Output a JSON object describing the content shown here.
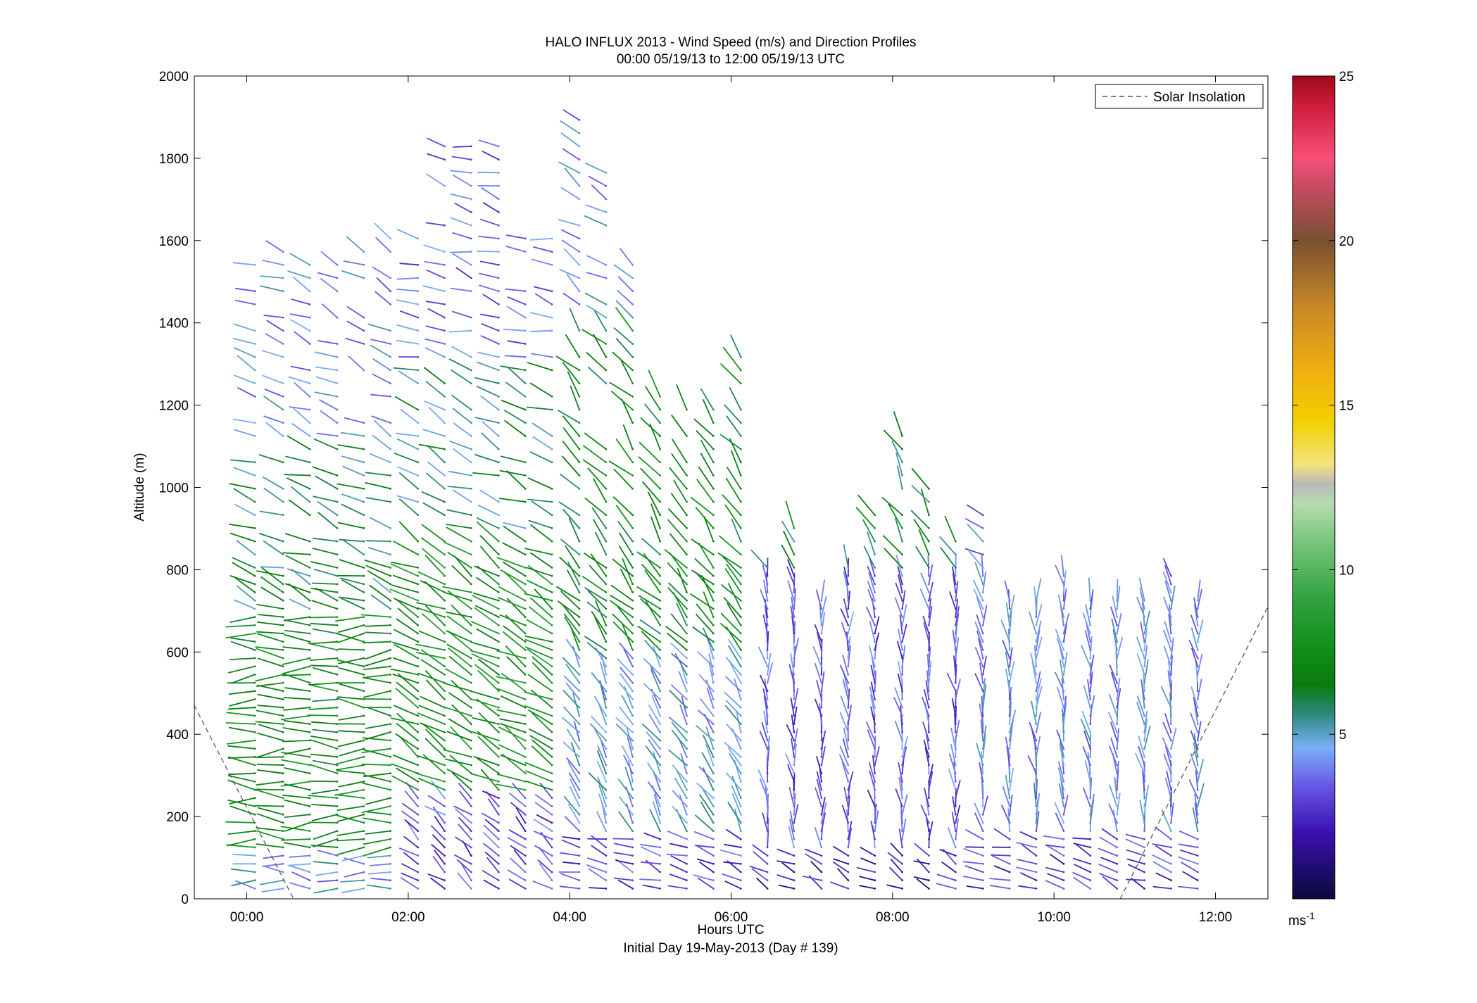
{
  "chart_data": {
    "type": "wind-barb-profile",
    "title": "HALO INFLUX 2013 - Wind Speed (m/s) and Direction Profiles",
    "subtitle": "00:00 05/19/13 to 12:00 05/19/13  UTC",
    "xlabel": "Hours UTC",
    "xlabel2": "Initial Day 19-May-2013 (Day # 139)",
    "ylabel": "Altitude (m)",
    "xlim_hours": [
      -0.65,
      12.65
    ],
    "ylim": [
      0,
      2000
    ],
    "x_ticks": [
      {
        "hour": 0,
        "label": "00:00"
      },
      {
        "hour": 2,
        "label": "02:00"
      },
      {
        "hour": 4,
        "label": "04:00"
      },
      {
        "hour": 6,
        "label": "06:00"
      },
      {
        "hour": 8,
        "label": "08:00"
      },
      {
        "hour": 10,
        "label": "10:00"
      },
      {
        "hour": 12,
        "label": "12:00"
      }
    ],
    "y_ticks": [
      {
        "value": 0,
        "label": "0"
      },
      {
        "value": 200,
        "label": "200"
      },
      {
        "value": 400,
        "label": "400"
      },
      {
        "value": 600,
        "label": "600"
      },
      {
        "value": 800,
        "label": "800"
      },
      {
        "value": 1000,
        "label": "1000"
      },
      {
        "value": 1200,
        "label": "1200"
      },
      {
        "value": 1400,
        "label": "1400"
      },
      {
        "value": 1600,
        "label": "1600"
      },
      {
        "value": 1800,
        "label": "1800"
      },
      {
        "value": 2000,
        "label": "2000"
      }
    ],
    "colorbar": {
      "range": [
        0,
        25
      ],
      "ticks": [
        {
          "value": 5,
          "label": "5"
        },
        {
          "value": 10,
          "label": "10"
        },
        {
          "value": 15,
          "label": "15"
        },
        {
          "value": 20,
          "label": "20"
        },
        {
          "value": 25,
          "label": "25"
        }
      ],
      "unit_label": "ms",
      "unit_exp": "-1",
      "stops": [
        {
          "v": 0,
          "c": "#0a0a3a"
        },
        {
          "v": 2,
          "c": "#3a10b0"
        },
        {
          "v": 3.5,
          "c": "#6a5ae8"
        },
        {
          "v": 4.6,
          "c": "#7ab0f8"
        },
        {
          "v": 5.6,
          "c": "#2e8a7e"
        },
        {
          "v": 6.5,
          "c": "#0a7a10"
        },
        {
          "v": 7.5,
          "c": "#0e8e16"
        },
        {
          "v": 9,
          "c": "#2ea03e"
        },
        {
          "v": 10.5,
          "c": "#6abe6e"
        },
        {
          "v": 12,
          "c": "#b4dcae"
        },
        {
          "v": 12.6,
          "c": "#b8b8b8"
        },
        {
          "v": 13.2,
          "c": "#f2e480"
        },
        {
          "v": 14.5,
          "c": "#f2d000"
        },
        {
          "v": 16,
          "c": "#f0b010"
        },
        {
          "v": 18,
          "c": "#c88828"
        },
        {
          "v": 20,
          "c": "#785030"
        },
        {
          "v": 21.5,
          "c": "#c04a60"
        },
        {
          "v": 22.5,
          "c": "#f85078"
        },
        {
          "v": 24,
          "c": "#d02040"
        },
        {
          "v": 25,
          "c": "#a00818"
        }
      ]
    },
    "legend": {
      "label": "Solar Insolation",
      "position": "top-right"
    },
    "solar_insolation": [
      {
        "hour": -0.65,
        "alt": 470
      },
      {
        "hour": 0.58,
        "alt": 0
      },
      {
        "hour": 10.82,
        "alt": 0
      },
      {
        "hour": 12.65,
        "alt": 710
      }
    ],
    "profiles": [
      {
        "hour": 0.1,
        "top": 1580,
        "start": 25
      },
      {
        "hour": 0.45,
        "top": 1620,
        "start": 25
      },
      {
        "hour": 0.78,
        "top": 1570,
        "start": 25
      },
      {
        "hour": 1.12,
        "top": 1570,
        "start": 25
      },
      {
        "hour": 1.45,
        "top": 1580,
        "start": 25
      },
      {
        "hour": 1.78,
        "top": 1630,
        "start": 25
      },
      {
        "hour": 2.12,
        "top": 1620,
        "start": 25
      },
      {
        "hour": 2.45,
        "top": 1860,
        "start": 25
      },
      {
        "hour": 2.78,
        "top": 1860,
        "start": 25
      },
      {
        "hour": 3.12,
        "top": 1860,
        "start": 25
      },
      {
        "hour": 3.45,
        "top": 1620,
        "start": 25
      },
      {
        "hour": 3.78,
        "top": 1620,
        "start": 25
      },
      {
        "hour": 4.12,
        "top": 1920,
        "start": 25
      },
      {
        "hour": 4.45,
        "top": 1780,
        "start": 25
      },
      {
        "hour": 4.78,
        "top": 1560,
        "start": 25
      },
      {
        "hour": 5.12,
        "top": 1240,
        "start": 25
      },
      {
        "hour": 5.45,
        "top": 1200,
        "start": 25
      },
      {
        "hour": 5.78,
        "top": 1200,
        "start": 25
      },
      {
        "hour": 6.12,
        "top": 1320,
        "start": 25
      },
      {
        "hour": 6.45,
        "top": 830,
        "start": 25
      },
      {
        "hour": 6.78,
        "top": 930,
        "start": 25
      },
      {
        "hour": 7.12,
        "top": 730,
        "start": 25
      },
      {
        "hour": 7.45,
        "top": 820,
        "start": 25
      },
      {
        "hour": 7.78,
        "top": 960,
        "start": 25
      },
      {
        "hour": 8.12,
        "top": 1130,
        "start": 25
      },
      {
        "hour": 8.45,
        "top": 1010,
        "start": 25
      },
      {
        "hour": 8.78,
        "top": 900,
        "start": 25
      },
      {
        "hour": 9.12,
        "top": 950,
        "start": 25
      },
      {
        "hour": 9.45,
        "top": 730,
        "start": 25
      },
      {
        "hour": 9.78,
        "top": 730,
        "start": 25
      },
      {
        "hour": 10.12,
        "top": 800,
        "start": 25
      },
      {
        "hour": 10.45,
        "top": 730,
        "start": 25
      },
      {
        "hour": 10.78,
        "top": 730,
        "start": 25
      },
      {
        "hour": 11.12,
        "top": 730,
        "start": 25
      },
      {
        "hour": 11.45,
        "top": 790,
        "start": 25
      },
      {
        "hour": 11.78,
        "top": 730,
        "start": 25
      }
    ],
    "speed_regimes": [
      {
        "from_hour": 0,
        "to_hour": 1.9,
        "alt_from": 0,
        "alt_to": 120,
        "speed": 4.5,
        "direction_deg": 275
      },
      {
        "from_hour": 0,
        "to_hour": 1.9,
        "alt_from": 120,
        "alt_to": 700,
        "speed": 7.2,
        "direction_deg": 270
      },
      {
        "from_hour": 0,
        "to_hour": 1.9,
        "alt_from": 700,
        "alt_to": 1100,
        "speed": 6.0,
        "direction_deg": 290
      },
      {
        "from_hour": 0,
        "to_hour": 1.9,
        "alt_from": 1100,
        "alt_to": 1650,
        "speed": 4.2,
        "direction_deg": 295
      },
      {
        "from_hour": 1.9,
        "to_hour": 4.0,
        "alt_from": 0,
        "alt_to": 250,
        "speed": 3.2,
        "direction_deg": 310
      },
      {
        "from_hour": 1.9,
        "to_hour": 4.0,
        "alt_from": 250,
        "alt_to": 900,
        "speed": 7.5,
        "direction_deg": 300
      },
      {
        "from_hour": 1.9,
        "to_hour": 4.0,
        "alt_from": 900,
        "alt_to": 1300,
        "speed": 5.5,
        "direction_deg": 295
      },
      {
        "from_hour": 1.9,
        "to_hour": 4.0,
        "alt_from": 1300,
        "alt_to": 1950,
        "speed": 3.6,
        "direction_deg": 285
      },
      {
        "from_hour": 4.0,
        "to_hour": 6.3,
        "alt_from": 0,
        "alt_to": 150,
        "speed": 3.0,
        "direction_deg": 290
      },
      {
        "from_hour": 4.0,
        "to_hour": 6.3,
        "alt_from": 150,
        "alt_to": 600,
        "speed": 4.6,
        "direction_deg": 330
      },
      {
        "from_hour": 4.0,
        "to_hour": 6.3,
        "alt_from": 600,
        "alt_to": 1400,
        "speed": 6.8,
        "direction_deg": 320
      },
      {
        "from_hour": 4.0,
        "to_hour": 6.3,
        "alt_from": 1400,
        "alt_to": 1950,
        "speed": 4.3,
        "direction_deg": 305
      },
      {
        "from_hour": 6.3,
        "to_hour": 9.0,
        "alt_from": 0,
        "alt_to": 120,
        "speed": 2.2,
        "direction_deg": 300
      },
      {
        "from_hour": 6.3,
        "to_hour": 9.0,
        "alt_from": 120,
        "alt_to": 800,
        "speed": 3.4,
        "direction_deg": 355
      },
      {
        "from_hour": 6.3,
        "to_hour": 9.0,
        "alt_from": 800,
        "alt_to": 1150,
        "speed": 6.5,
        "direction_deg": 330
      },
      {
        "from_hour": 9.0,
        "to_hour": 12.1,
        "alt_from": 0,
        "alt_to": 150,
        "speed": 2.8,
        "direction_deg": 290
      },
      {
        "from_hour": 9.0,
        "to_hour": 12.1,
        "alt_from": 150,
        "alt_to": 800,
        "speed": 4.2,
        "direction_deg": 355
      }
    ]
  }
}
